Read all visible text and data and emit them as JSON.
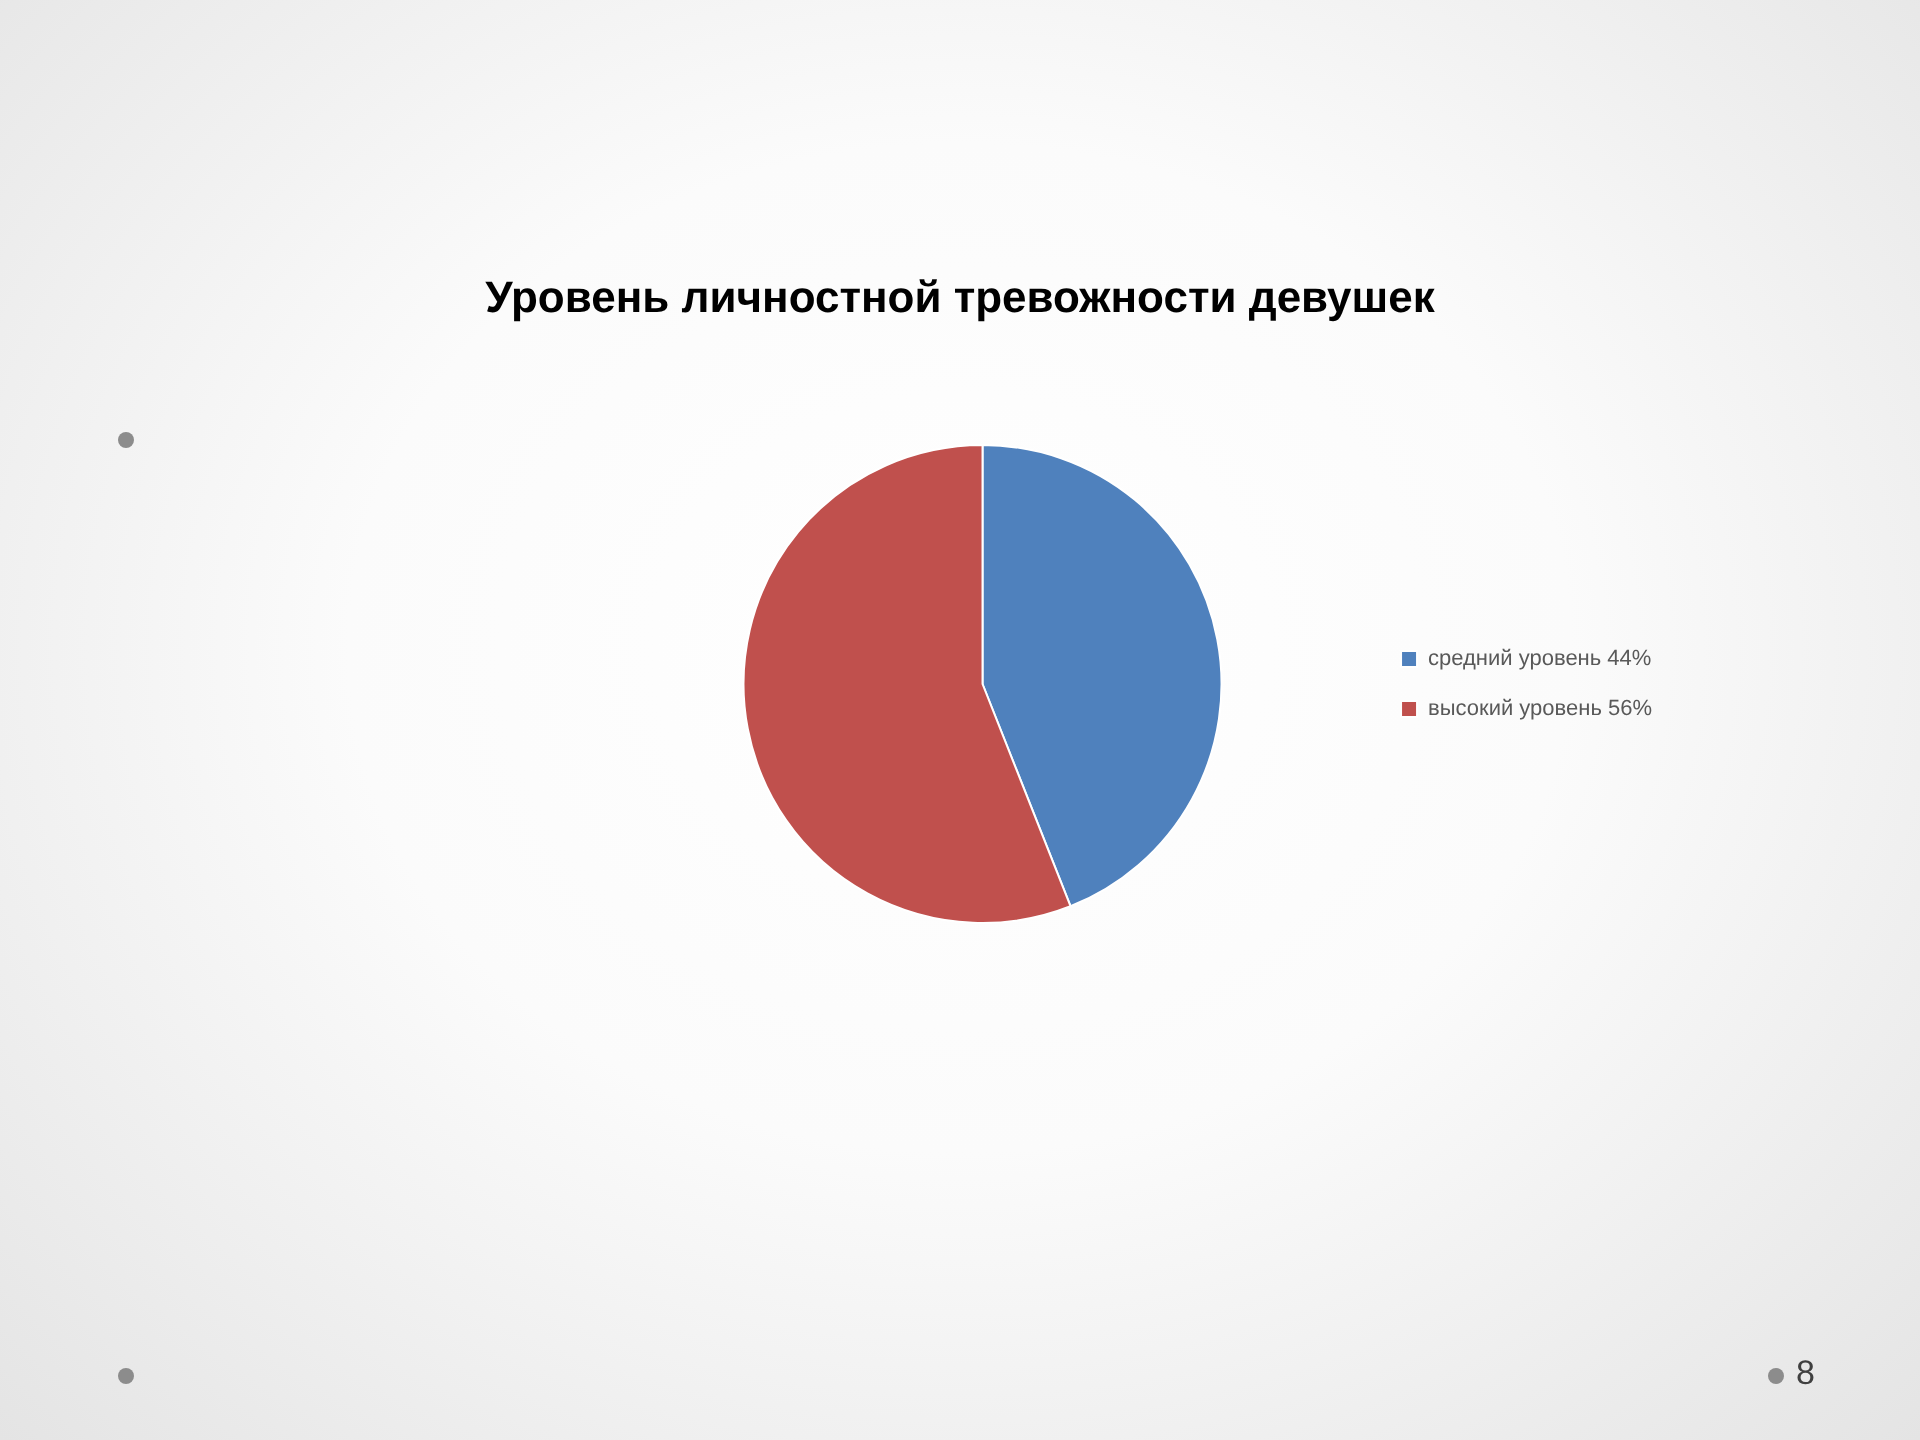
{
  "chart_data": {
    "type": "pie",
    "title": "Уровень личностной тревожности девушек",
    "categories": [
      "средний уровень 44%",
      "высокий уровень 56%"
    ],
    "values": [
      44,
      56
    ],
    "colors": [
      "#4f81bd",
      "#c0504d"
    ],
    "legend": "right",
    "annotations": [
      "8"
    ]
  }
}
